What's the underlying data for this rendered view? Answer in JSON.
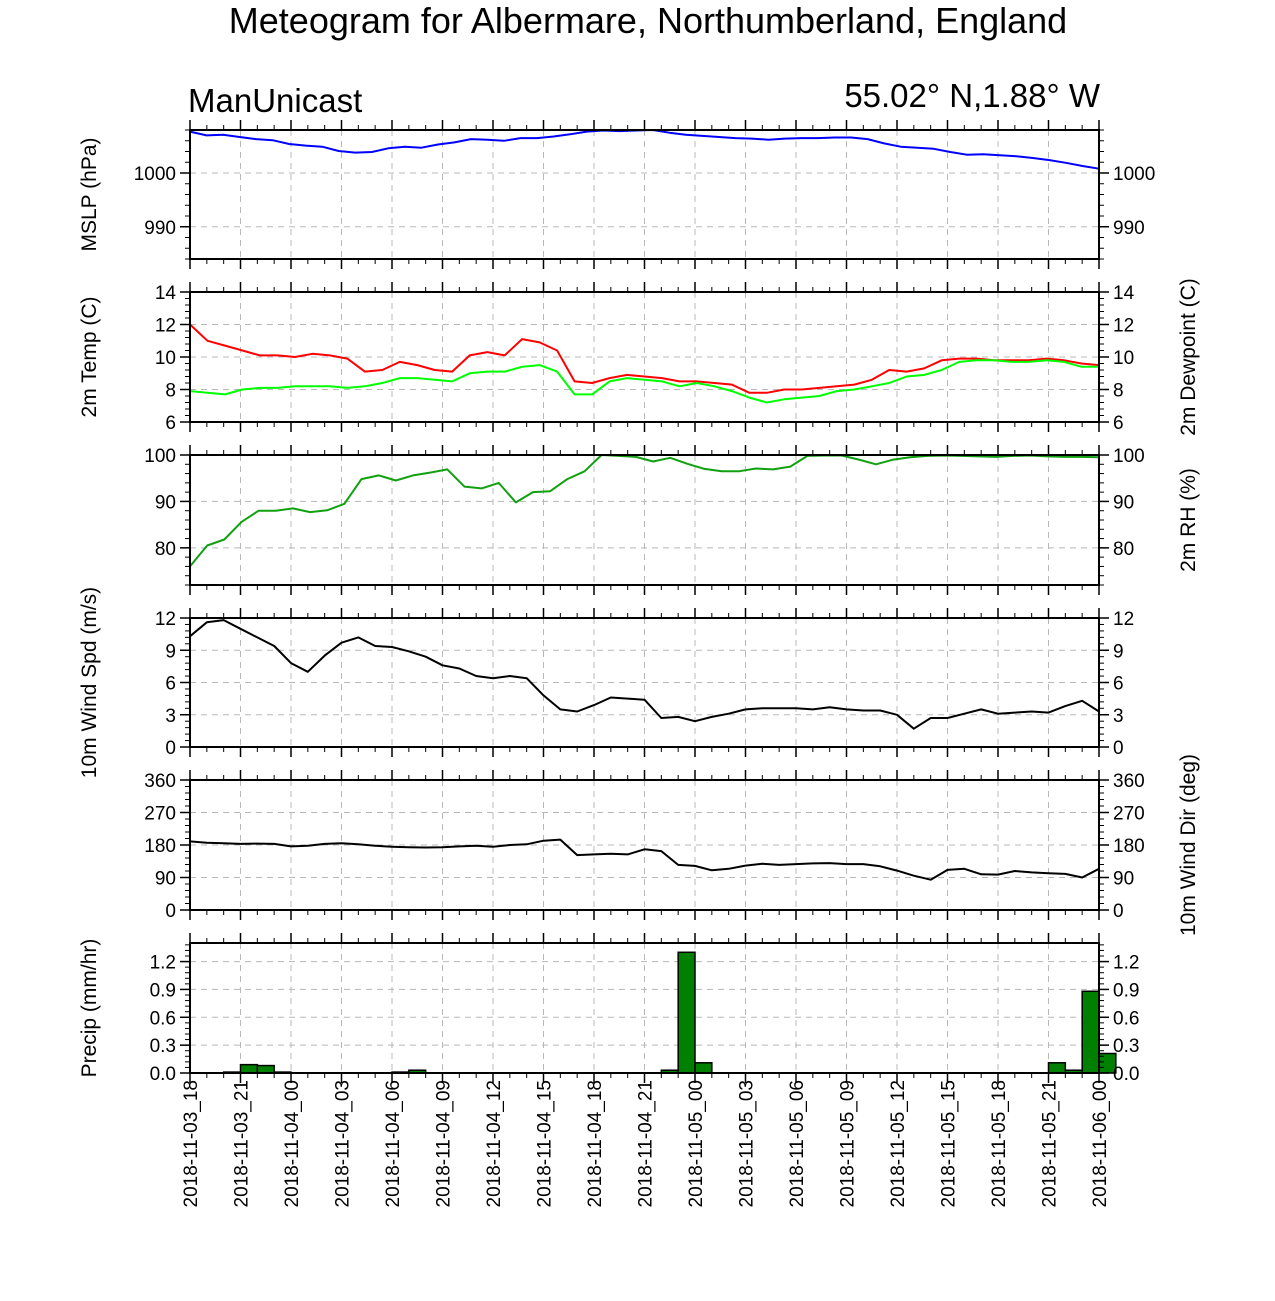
{
  "title": "Meteogram for Albermare, Northumberland, England",
  "model_label": "ManUnicast",
  "location_label": "55.02° N,1.88° W",
  "time_labels": [
    "2018-11-03_18",
    "2018-11-03_21",
    "2018-11-04_00",
    "2018-11-04_03",
    "2018-11-04_06",
    "2018-11-04_09",
    "2018-11-04_12",
    "2018-11-04_15",
    "2018-11-04_18",
    "2018-11-04_21",
    "2018-11-05_00",
    "2018-11-05_03",
    "2018-11-05_06",
    "2018-11-05_09",
    "2018-11-05_12",
    "2018-11-05_15",
    "2018-11-05_18",
    "2018-11-05_21",
    "2018-11-06_00"
  ],
  "colors": {
    "mslp": "#0000ff",
    "temp": "#ff0000",
    "dewpoint": "#00ff00",
    "rh": "#10a010",
    "wind": "#000000",
    "precip_fill": "#008000"
  },
  "chart_data": [
    {
      "type": "line",
      "ylabel": "MSLP (hPa)",
      "ylabel_right": "",
      "ylim": [
        984,
        1008
      ],
      "ticks": [
        "990",
        "1000"
      ],
      "tick_values": [
        990,
        1000
      ],
      "series": [
        {
          "color_key": "mslp",
          "values": [
            1007.7,
            1007,
            1007.1,
            1006.7,
            1006.3,
            1006.1,
            1005.4,
            1005.1,
            1004.9,
            1004.1,
            1003.8,
            1003.9,
            1004.6,
            1004.9,
            1004.7,
            1005.3,
            1005.7,
            1006.3,
            1006.2,
            1006,
            1006.5,
            1006.5,
            1006.8,
            1007.2,
            1007.7,
            1007.9,
            1007.8,
            1007.9,
            1008,
            1007.5,
            1007.1,
            1006.9,
            1006.7,
            1006.5,
            1006.4,
            1006.2,
            1006.4,
            1006.5,
            1006.5,
            1006.6,
            1006.6,
            1006.3,
            1005.5,
            1004.9,
            1004.7,
            1004.5,
            1003.9,
            1003.4,
            1003.5,
            1003.3,
            1003.1,
            1002.8,
            1002.4,
            1001.9,
            1001.3,
            1000.8
          ]
        }
      ]
    },
    {
      "type": "line",
      "ylabel": "2m Temp (C)",
      "ylabel_right": "2m Dewpoint (C)",
      "ylim": [
        6,
        14
      ],
      "ticks": [
        "6",
        "8",
        "10",
        "12",
        "14"
      ],
      "tick_values": [
        6,
        8,
        10,
        12,
        14
      ],
      "series": [
        {
          "color_key": "temp",
          "values": [
            12,
            11,
            10.7,
            10.4,
            10.1,
            10.1,
            10,
            10.2,
            10.1,
            9.9,
            9.1,
            9.2,
            9.7,
            9.5,
            9.2,
            9.1,
            10.1,
            10.3,
            10.1,
            11.1,
            10.9,
            10.4,
            8.5,
            8.4,
            8.7,
            8.9,
            8.8,
            8.7,
            8.5,
            8.5,
            8.4,
            8.3,
            7.8,
            7.8,
            8,
            8,
            8.1,
            8.2,
            8.3,
            8.6,
            9.2,
            9.1,
            9.3,
            9.8,
            9.9,
            9.9,
            9.8,
            9.8,
            9.8,
            9.9,
            9.8,
            9.6,
            9.5
          ]
        },
        {
          "color_key": "dewpoint",
          "values": [
            7.9,
            7.8,
            7.7,
            8,
            8.1,
            8.1,
            8.2,
            8.2,
            8.2,
            8.1,
            8.2,
            8.4,
            8.7,
            8.7,
            8.6,
            8.5,
            9,
            9.1,
            9.1,
            9.4,
            9.5,
            9.1,
            7.7,
            7.7,
            8.5,
            8.7,
            8.6,
            8.5,
            8.2,
            8.4,
            8.2,
            7.9,
            7.5,
            7.2,
            7.4,
            7.5,
            7.6,
            7.9,
            8,
            8.2,
            8.4,
            8.8,
            8.9,
            9.2,
            9.7,
            9.8,
            9.8,
            9.7,
            9.7,
            9.8,
            9.7,
            9.4,
            9.4
          ]
        }
      ]
    },
    {
      "type": "line",
      "ylabel": "",
      "ylabel_right": "2m RH (%)",
      "ylim": [
        72,
        100
      ],
      "ticks": [
        "80",
        "90",
        "100"
      ],
      "tick_values": [
        80,
        90,
        100
      ],
      "series": [
        {
          "color_key": "rh",
          "values": [
            76,
            80.5,
            81.8,
            85.6,
            88,
            88,
            88.5,
            87.7,
            88.1,
            89.5,
            94.8,
            95.6,
            94.5,
            95.6,
            96.2,
            96.9,
            93.2,
            92.8,
            94,
            89.8,
            92,
            92.2,
            94.8,
            96.5,
            100,
            99.8,
            99.6,
            98.6,
            99.4,
            98.1,
            97,
            96.5,
            96.5,
            97.1,
            96.9,
            97.5,
            99.8,
            99.9,
            99.9,
            99,
            98,
            99,
            99.5,
            99.8,
            99.9,
            99.8,
            99.7,
            99.6,
            99.8,
            99.9,
            99.7,
            99.6,
            99.6,
            99.5
          ]
        }
      ]
    },
    {
      "type": "line",
      "ylabel": "10m Wind Spd (m/s)",
      "ylabel_right": "",
      "ylim": [
        0,
        12
      ],
      "ticks": [
        "0",
        "3",
        "6",
        "9",
        "12"
      ],
      "tick_values": [
        0,
        3,
        6,
        9,
        12
      ],
      "series": [
        {
          "color_key": "wind",
          "values": [
            10.3,
            11.6,
            11.8,
            11,
            10.2,
            9.4,
            7.8,
            7,
            8.5,
            9.7,
            10.2,
            9.4,
            9.3,
            8.9,
            8.4,
            7.6,
            7.3,
            6.6,
            6.4,
            6.6,
            6.4,
            4.8,
            3.5,
            3.3,
            3.9,
            4.6,
            4.5,
            4.4,
            2.7,
            2.8,
            2.4,
            2.8,
            3.1,
            3.5,
            3.6,
            3.6,
            3.6,
            3.5,
            3.7,
            3.5,
            3.4,
            3.4,
            3,
            1.7,
            2.7,
            2.7,
            3.1,
            3.5,
            3.1,
            3.2,
            3.3,
            3.2,
            3.8,
            4.3,
            3.3
          ]
        }
      ]
    },
    {
      "type": "line",
      "ylabel": "",
      "ylabel_right": "10m Wind Dir (deg)",
      "ylim": [
        0,
        360
      ],
      "ticks": [
        "0",
        "90",
        "180",
        "270",
        "360"
      ],
      "tick_values": [
        0,
        90,
        180,
        270,
        360
      ],
      "series": [
        {
          "color_key": "wind",
          "values": [
            190,
            186,
            185,
            183,
            184,
            183,
            176,
            178,
            183,
            185,
            182,
            178,
            175,
            174,
            173,
            174,
            176,
            178,
            175,
            180,
            182,
            192,
            195,
            152,
            154,
            156,
            154,
            168,
            163,
            125,
            122,
            110,
            114,
            123,
            128,
            125,
            127,
            129,
            130,
            127,
            127,
            121,
            109,
            95,
            84,
            111,
            114,
            99,
            98,
            108,
            104,
            102,
            100,
            90,
            114
          ]
        }
      ]
    },
    {
      "type": "bar",
      "ylabel": "Precip (mm/hr)",
      "ylabel_right": "",
      "ylim": [
        0,
        1.4
      ],
      "ticks": [
        "0.0",
        "0.3",
        "0.6",
        "0.9",
        "1.2"
      ],
      "tick_values": [
        0,
        0.3,
        0.6,
        0.9,
        1.2
      ],
      "values": [
        0,
        0,
        0.01,
        0.09,
        0.08,
        0.01,
        0,
        0,
        0,
        0,
        0,
        0,
        0.01,
        0.03,
        0,
        0,
        0,
        0,
        0,
        0,
        0,
        0,
        0,
        0,
        0,
        0,
        0,
        0,
        0.03,
        1.3,
        0.11,
        0,
        0,
        0,
        0,
        0,
        0,
        0,
        0,
        0,
        0,
        0,
        0,
        0,
        0,
        0,
        0,
        0,
        0,
        0,
        0,
        0.11,
        0.03,
        0.88,
        0.21
      ]
    }
  ]
}
